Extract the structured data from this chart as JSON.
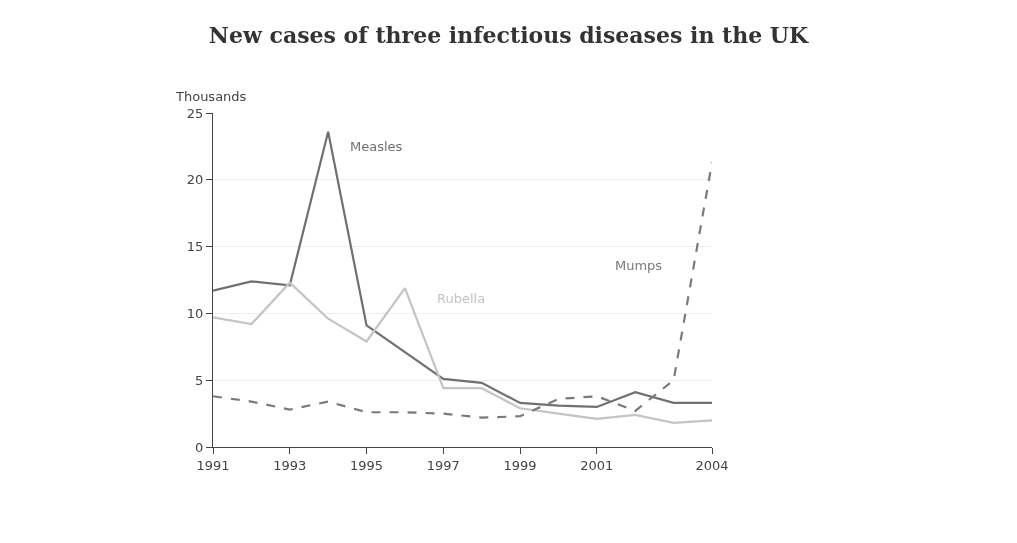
{
  "chart_data": {
    "type": "line",
    "title": "New cases of three infectious diseases in the UK",
    "ylabel": "Thousands",
    "x": [
      1991,
      1992,
      1993,
      1994,
      1995,
      1996,
      1997,
      1998,
      1999,
      2000,
      2001,
      2002,
      2003,
      2004
    ],
    "series": [
      {
        "name": "Measles",
        "color": "#707070",
        "line_style": "solid",
        "values": [
          11.7,
          12.4,
          12.1,
          23.6,
          9.1,
          7.1,
          5.1,
          4.8,
          3.3,
          3.1,
          3.0,
          4.1,
          3.3,
          3.3
        ]
      },
      {
        "name": "Rubella",
        "color": "#c4c4c4",
        "line_style": "solid",
        "values": [
          9.7,
          9.2,
          12.3,
          9.6,
          7.9,
          11.9,
          4.4,
          4.4,
          2.9,
          2.5,
          2.1,
          2.4,
          1.8,
          2.0
        ]
      },
      {
        "name": "Mumps",
        "color": "#7a7a7a",
        "line_style": "dashed",
        "values": [
          3.8,
          3.4,
          2.8,
          3.4,
          2.6,
          2.6,
          2.5,
          2.2,
          2.3,
          3.6,
          3.8,
          2.7,
          5.0,
          21.3
        ]
      }
    ],
    "xlim": [
      1991,
      2004
    ],
    "xticks": [
      1991,
      1993,
      1995,
      1997,
      1999,
      2001,
      2004
    ],
    "ylim": [
      0,
      25
    ],
    "yticks": [
      0,
      5,
      10,
      15,
      20,
      25
    ],
    "grid": "y",
    "legend": false,
    "marker": "none"
  }
}
